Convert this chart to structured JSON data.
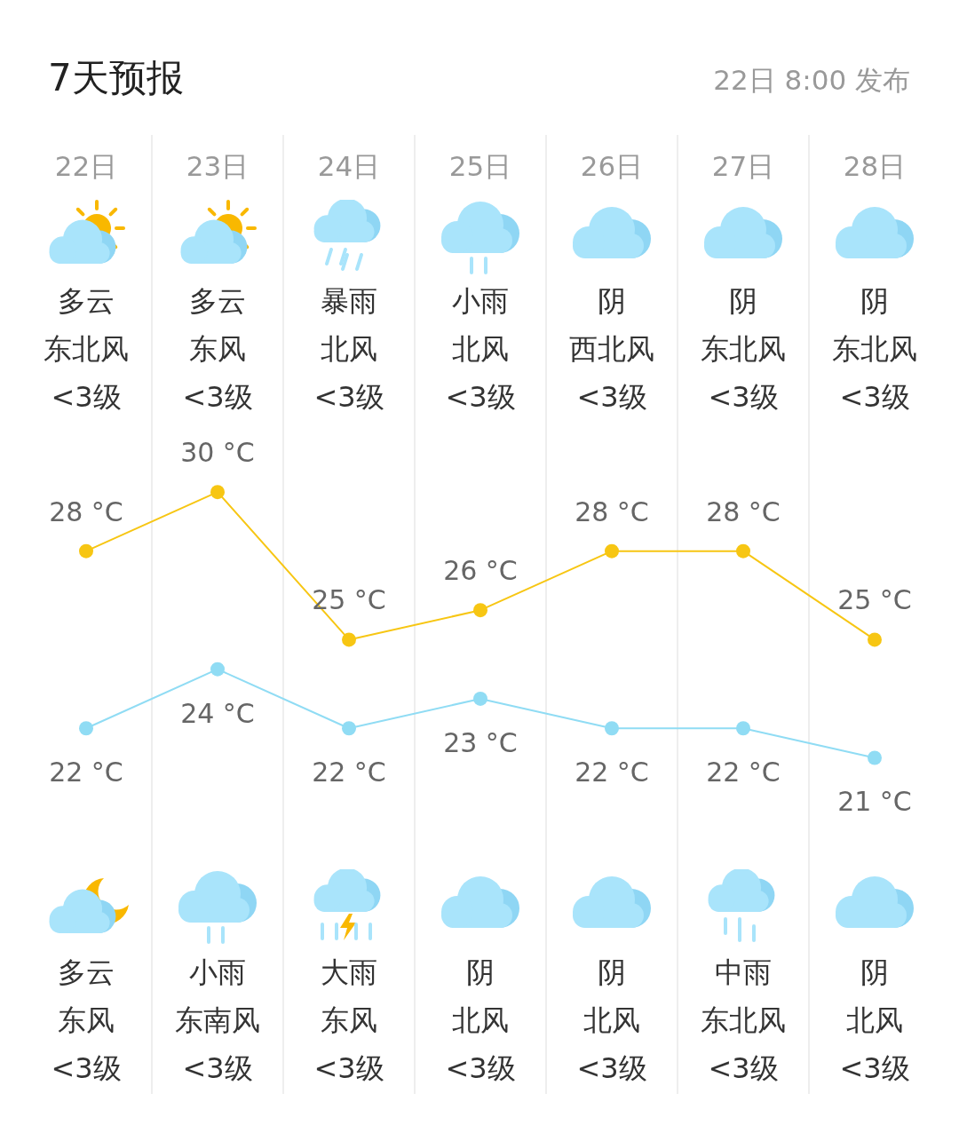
{
  "chart_data": {
    "type": "line",
    "title": "7天预报",
    "subtitle": "22日 8:00 发布",
    "categories": [
      "22日",
      "23日",
      "24日",
      "25日",
      "26日",
      "27日",
      "28日"
    ],
    "series": [
      {
        "color": "#f7c613",
        "values": [
          28,
          30,
          25,
          26,
          28,
          28,
          25
        ],
        "value_labels": [
          "28 °C",
          "30 °C",
          "25 °C",
          "26 °C",
          "28 °C",
          "28 °C",
          "25 °C"
        ]
      },
      {
        "color": "#90dcf4",
        "values": [
          22,
          24,
          22,
          23,
          22,
          22,
          21
        ],
        "value_labels": [
          "22 °C",
          "24 °C",
          "22 °C",
          "23 °C",
          "22 °C",
          "22 °C",
          "21 °C"
        ]
      }
    ],
    "marker": "circle",
    "line_style": "solid",
    "legend": false,
    "grid": false,
    "annotations": [
      "多云",
      "东北风",
      "<3级",
      "多云",
      "东风",
      "<3级",
      "暴雨",
      "北风",
      "<3级",
      "小雨",
      "北风",
      "<3级",
      "阴",
      "西北风",
      "<3级",
      "阴",
      "东北风",
      "<3级",
      "阴",
      "东北风",
      "<3级",
      "多云",
      "东风",
      "<3级",
      "小雨",
      "东南风",
      "<3级",
      "大雨",
      "东风",
      "<3级",
      "阴",
      "北风",
      "<3级",
      "阴",
      "北风",
      "<3级",
      "中雨",
      "东北风",
      "<3级",
      "阴",
      "北风",
      "<3级"
    ]
  }
}
